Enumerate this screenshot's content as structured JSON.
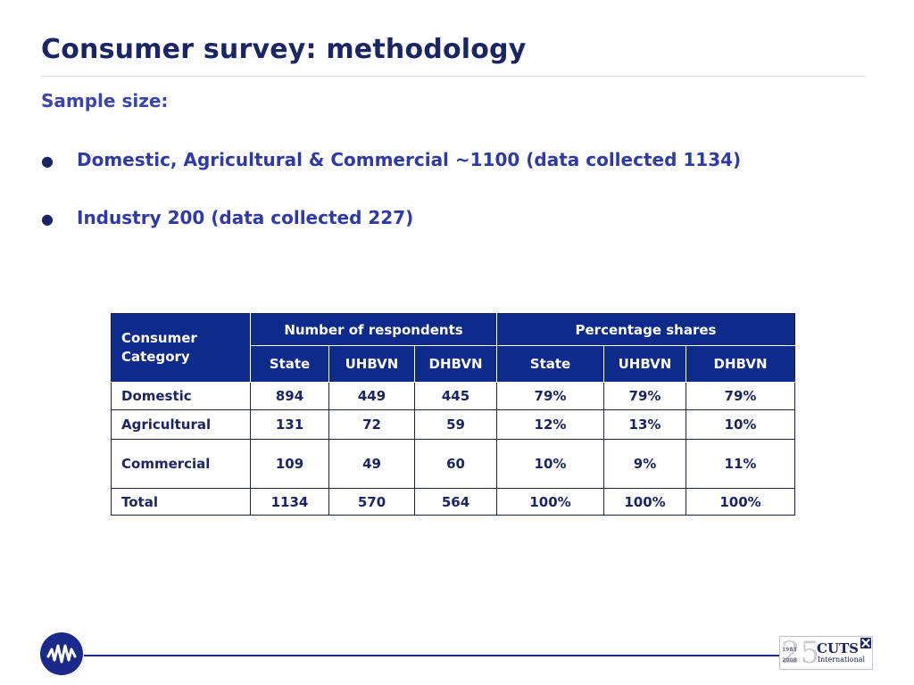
{
  "slide": {
    "title": "Consumer survey: methodology",
    "subheading": "Sample size:",
    "bullets": [
      "Domestic, Agricultural & Commercial ~1100 (data collected 1134)",
      "Industry 200 (data collected 227)"
    ],
    "bullet_glyph": "●"
  },
  "table": {
    "header_category": "Consumer Category",
    "group_headers": [
      "Number of respondents",
      "Percentage shares"
    ],
    "sub_headers": [
      "State",
      "UHBVN",
      "DHBVN",
      "State",
      "UHBVN",
      "DHBVN"
    ],
    "rows": [
      {
        "label": "Domestic",
        "values": [
          "894",
          "449",
          "445",
          "79%",
          "79%",
          "79%"
        ]
      },
      {
        "label": "Agricultural",
        "values": [
          "131",
          "72",
          "59",
          "12%",
          "13%",
          "10%"
        ]
      },
      {
        "label": "Commercial",
        "values": [
          "109",
          "49",
          "60",
          "10%",
          "9%",
          "11%"
        ]
      },
      {
        "label": "Total",
        "values": [
          "1134",
          "570",
          "564",
          "100%",
          "100%",
          "100%"
        ]
      }
    ]
  },
  "footer": {
    "left_logo_icon": "wave-signal-icon",
    "right_logo": {
      "anniversary_number": "25",
      "years": [
        "1983",
        "2008"
      ],
      "brand": "CUTS",
      "sub": "International"
    }
  },
  "colors": {
    "title": "#1b2566",
    "bullet_text": "#2f3aa6",
    "table_header_bg": "#0e2a8a",
    "footer_line": "#1b2a8a"
  }
}
